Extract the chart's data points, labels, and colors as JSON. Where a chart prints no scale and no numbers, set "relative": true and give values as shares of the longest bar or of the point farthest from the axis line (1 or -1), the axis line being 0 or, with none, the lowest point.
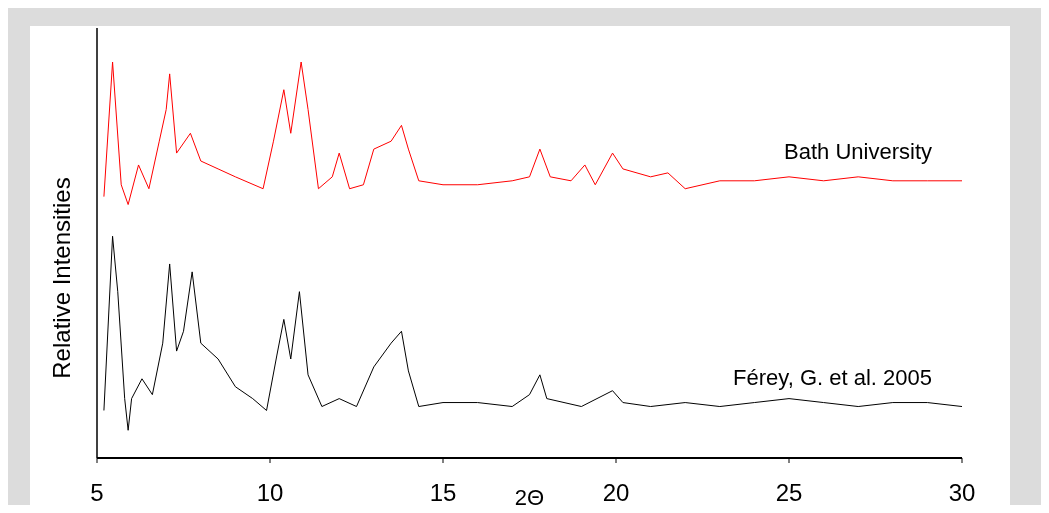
{
  "chart_data": {
    "type": "line",
    "xlabel": "2Θ",
    "ylabel": "Relative Intensities",
    "relative": true,
    "xlim": [
      5,
      30
    ],
    "xticks": [
      5,
      10,
      15,
      20,
      25,
      30
    ],
    "series": [
      {
        "name": "Bath University",
        "color": "#ff0000",
        "x": [
          5.2,
          5.45,
          5.7,
          5.9,
          6.2,
          6.5,
          6.8,
          7.0,
          7.1,
          7.3,
          7.7,
          8.0,
          8.5,
          9.0,
          9.8,
          10.1,
          10.4,
          10.6,
          10.9,
          11.1,
          11.4,
          11.8,
          12.0,
          12.3,
          12.7,
          13.0,
          13.5,
          13.8,
          14.0,
          14.3,
          15,
          16,
          17,
          17.5,
          17.8,
          18.1,
          18.7,
          19.1,
          19.4,
          19.9,
          20.2,
          21,
          21.5,
          22,
          23,
          24,
          25,
          26,
          27,
          28,
          29,
          30
        ],
        "values": [
          0.66,
          1.0,
          0.69,
          0.64,
          0.74,
          0.68,
          0.8,
          0.88,
          0.97,
          0.77,
          0.82,
          0.75,
          0.73,
          0.71,
          0.68,
          0.8,
          0.93,
          0.82,
          1.0,
          0.88,
          0.68,
          0.71,
          0.77,
          0.68,
          0.69,
          0.78,
          0.8,
          0.84,
          0.78,
          0.7,
          0.69,
          0.69,
          0.7,
          0.71,
          0.78,
          0.71,
          0.7,
          0.74,
          0.69,
          0.77,
          0.73,
          0.71,
          0.72,
          0.68,
          0.7,
          0.7,
          0.71,
          0.7,
          0.71,
          0.7,
          0.7,
          0.7
        ]
      },
      {
        "name": "Férey, G. et al. 2005",
        "color": "#000000",
        "x": [
          5.2,
          5.45,
          5.6,
          5.8,
          5.9,
          6.0,
          6.3,
          6.6,
          6.9,
          7.1,
          7.3,
          7.5,
          7.75,
          8.0,
          8.5,
          9.0,
          9.5,
          9.9,
          10.2,
          10.4,
          10.6,
          10.85,
          11.1,
          11.5,
          12,
          12.5,
          13,
          13.5,
          13.8,
          14.0,
          14.3,
          15,
          16,
          17,
          17.5,
          17.8,
          18.0,
          19,
          19.9,
          20.2,
          21,
          22,
          23,
          24,
          25,
          26,
          27,
          28,
          29,
          30
        ],
        "values": [
          0.12,
          0.56,
          0.42,
          0.15,
          0.07,
          0.15,
          0.2,
          0.16,
          0.29,
          0.49,
          0.27,
          0.32,
          0.47,
          0.29,
          0.25,
          0.18,
          0.15,
          0.12,
          0.26,
          0.35,
          0.25,
          0.42,
          0.21,
          0.13,
          0.15,
          0.13,
          0.23,
          0.29,
          0.32,
          0.22,
          0.13,
          0.14,
          0.14,
          0.13,
          0.16,
          0.21,
          0.15,
          0.13,
          0.17,
          0.14,
          0.13,
          0.14,
          0.13,
          0.14,
          0.15,
          0.14,
          0.13,
          0.14,
          0.14,
          0.13
        ]
      }
    ]
  }
}
